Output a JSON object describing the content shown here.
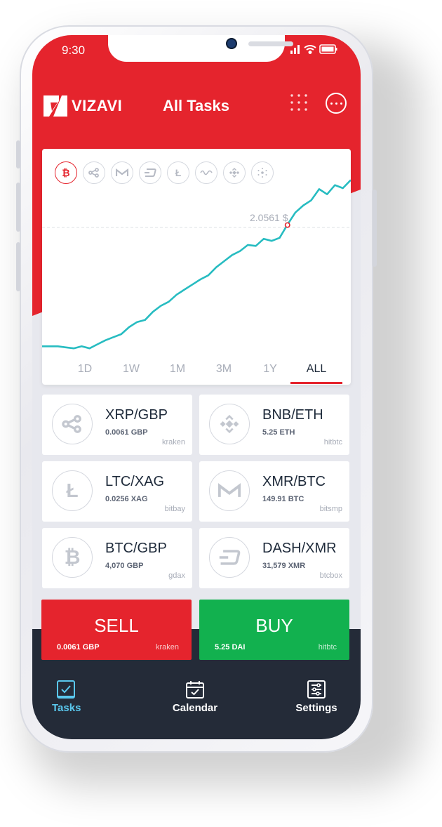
{
  "status": {
    "time": "9:30"
  },
  "header": {
    "brand": "VIZAVI",
    "title": "All Tasks"
  },
  "chart": {
    "coins": [
      "bitcoin",
      "ripple",
      "monero",
      "dash",
      "litecoin",
      "nano",
      "binance",
      "cardano"
    ],
    "active_coin": "bitcoin",
    "price_label": "2.0561 $",
    "ranges": [
      "1D",
      "1W",
      "1M",
      "3M",
      "1Y",
      "ALL"
    ],
    "active_range": "ALL"
  },
  "chart_data": {
    "type": "line",
    "series": [
      {
        "values": [
          0.86,
          0.86,
          0.86,
          0.85,
          0.84,
          0.86,
          0.84,
          0.88,
          0.92,
          0.95,
          0.98,
          1.05,
          1.1,
          1.12,
          1.2,
          1.26,
          1.3,
          1.37,
          1.42,
          1.47,
          1.52,
          1.56,
          1.64,
          1.7,
          1.76,
          1.8,
          1.86,
          1.85,
          1.92,
          1.9,
          1.93,
          2.06,
          2.18,
          2.25,
          2.3,
          2.41,
          2.36,
          2.45,
          2.42,
          2.5
        ]
      }
    ],
    "marker_value": 2.0561
  },
  "pairs": [
    {
      "name": "XRP/GBP",
      "amount": "0.0061 GBP",
      "exchange": "kraken",
      "icon": "ripple-icon"
    },
    {
      "name": "BNB/ETH",
      "amount": "5.25 ETH",
      "exchange": "hitbtc",
      "icon": "binance-icon"
    },
    {
      "name": "LTC/XAG",
      "amount": "0.0256 XAG",
      "exchange": "bitbay",
      "icon": "litecoin-icon"
    },
    {
      "name": "XMR/BTC",
      "amount": "149.91 BTC",
      "exchange": "bitsmp",
      "icon": "monero-icon"
    },
    {
      "name": "BTC/GBP",
      "amount": "4,070 GBP",
      "exchange": "gdax",
      "icon": "bitcoin-icon"
    },
    {
      "name": "DASH/XMR",
      "amount": "31,579 XMR",
      "exchange": "btcbox",
      "icon": "dash-icon"
    }
  ],
  "trade": {
    "sell": {
      "label": "SELL",
      "amount": "0.0061 GBP",
      "exchange": "kraken",
      "color": "#e5242d"
    },
    "buy": {
      "label": "BUY",
      "amount": "5.25 DAI",
      "exchange": "hitbtc",
      "color": "#12b14f"
    }
  },
  "nav": {
    "items": [
      {
        "label": "Tasks",
        "icon": "tasks-icon",
        "active": true
      },
      {
        "label": "Calendar",
        "icon": "calendar-icon",
        "active": false
      },
      {
        "label": "Settings",
        "icon": "settings-icon",
        "active": false
      }
    ]
  },
  "colors": {
    "brand_red": "#e5242d",
    "chart_line": "#27bcc1",
    "nav_dark": "#242b38",
    "accent_blue": "#5ac8ee"
  }
}
